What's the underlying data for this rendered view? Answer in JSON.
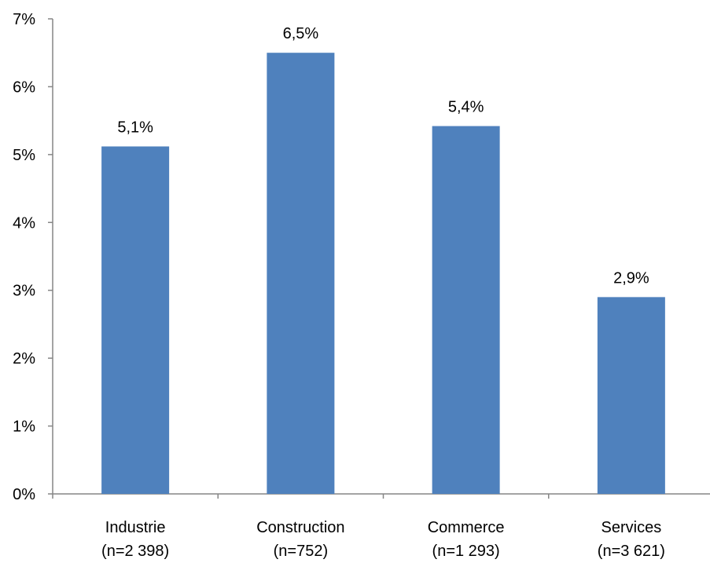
{
  "chart_data": {
    "type": "bar",
    "title": "",
    "xlabel": "",
    "ylabel": "",
    "categories": [
      [
        "Industrie",
        "(n=2 398)"
      ],
      [
        "Construction",
        "(n=752)"
      ],
      [
        "Commerce",
        "(n=1 293)"
      ],
      [
        "Services",
        "(n=3 621)"
      ]
    ],
    "values": [
      5.12,
      6.5,
      5.42,
      2.9
    ],
    "data_labels": [
      "5,1%",
      "6,5%",
      "5,4%",
      "2,9%"
    ],
    "ylim": [
      0,
      7
    ],
    "y_ticks": [
      0,
      1,
      2,
      3,
      4,
      5,
      6,
      7
    ],
    "y_tick_labels": [
      "0%",
      "1%",
      "2%",
      "3%",
      "4%",
      "5%",
      "6%",
      "7%"
    ],
    "grid": false,
    "legend": "none",
    "bar_color": "#4F81BD"
  }
}
